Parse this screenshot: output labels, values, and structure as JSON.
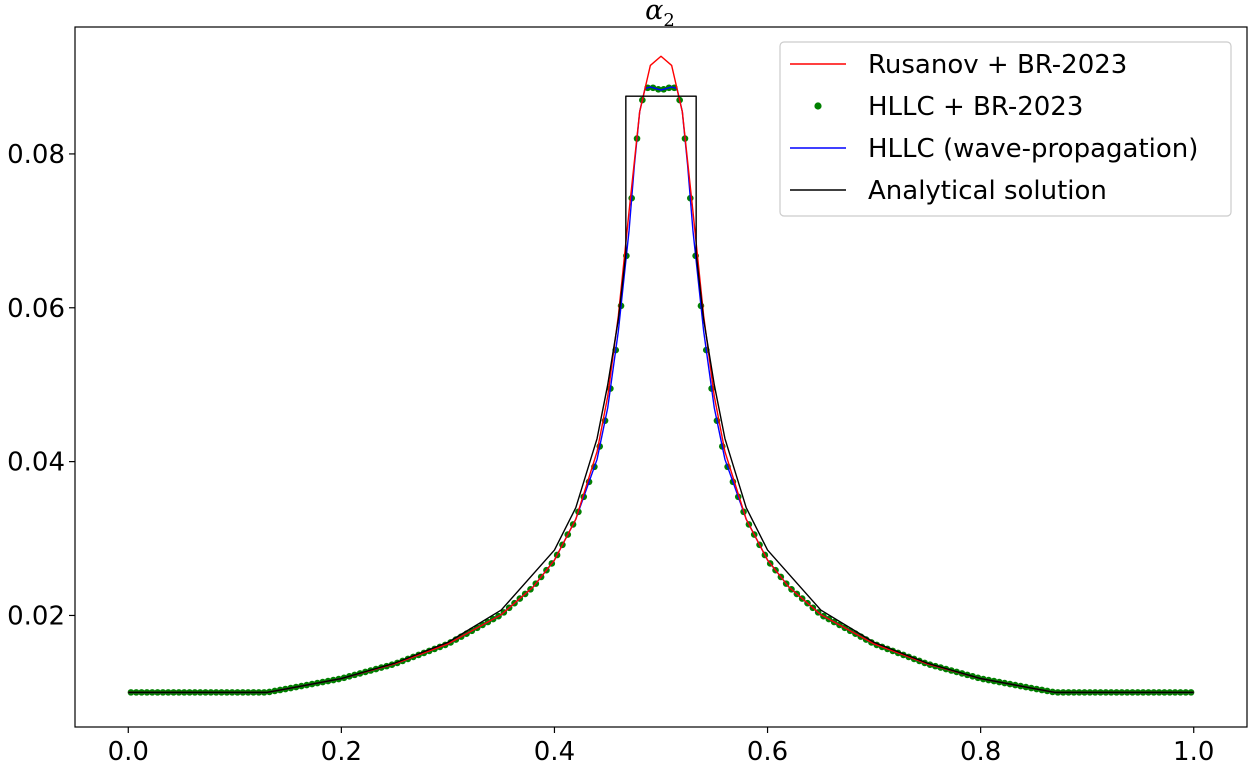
{
  "chart_data": {
    "type": "line",
    "title": "α",
    "title_subscript": "2",
    "xlabel": "",
    "ylabel": "",
    "xlim": [
      -0.05,
      1.05
    ],
    "ylim": [
      0.0055,
      0.0965
    ],
    "x_ticks": [
      0.0,
      0.2,
      0.4,
      0.6,
      0.8,
      1.0
    ],
    "x_tick_labels": [
      "0.0",
      "0.2",
      "0.4",
      "0.6",
      "0.8",
      "1.0"
    ],
    "y_ticks": [
      0.02,
      0.04,
      0.06,
      0.08
    ],
    "y_tick_labels": [
      "0.02",
      "0.04",
      "0.06",
      "0.08"
    ],
    "grid": false,
    "legend_position": "top-right",
    "series": [
      {
        "name": "Rusanov + BR-2023",
        "style": "line",
        "color": "#ff0000",
        "x": [
          0.0,
          0.13,
          0.15,
          0.2,
          0.25,
          0.3,
          0.35,
          0.38,
          0.4,
          0.42,
          0.44,
          0.45,
          0.46,
          0.47,
          0.48,
          0.49,
          0.5,
          0.51,
          0.52,
          0.53,
          0.54,
          0.55,
          0.56,
          0.58,
          0.6,
          0.62,
          0.65,
          0.7,
          0.75,
          0.8,
          0.85,
          0.87,
          1.0
        ],
        "y": [
          0.01,
          0.01,
          0.0105,
          0.0118,
          0.0137,
          0.0163,
          0.0201,
          0.0237,
          0.0272,
          0.0325,
          0.0413,
          0.0485,
          0.059,
          0.0725,
          0.0855,
          0.0915,
          0.0927,
          0.0915,
          0.0855,
          0.0725,
          0.059,
          0.0485,
          0.0413,
          0.0325,
          0.0272,
          0.0237,
          0.0201,
          0.0163,
          0.0137,
          0.0118,
          0.0105,
          0.01,
          0.01
        ]
      },
      {
        "name": "HLLC + BR-2023",
        "style": "markers",
        "color": "#008000",
        "x": [
          0.0,
          0.13,
          0.15,
          0.2,
          0.25,
          0.3,
          0.35,
          0.38,
          0.4,
          0.42,
          0.44,
          0.45,
          0.46,
          0.47,
          0.475,
          0.48,
          0.485,
          0.49,
          0.5,
          0.51,
          0.515,
          0.52,
          0.525,
          0.53,
          0.54,
          0.55,
          0.56,
          0.58,
          0.6,
          0.62,
          0.65,
          0.7,
          0.75,
          0.8,
          0.85,
          0.87,
          1.0
        ],
        "y": [
          0.01,
          0.01,
          0.0105,
          0.0118,
          0.0137,
          0.0163,
          0.0201,
          0.0237,
          0.0272,
          0.0325,
          0.0403,
          0.047,
          0.057,
          0.07,
          0.0785,
          0.0855,
          0.0885,
          0.0887,
          0.0883,
          0.0887,
          0.0885,
          0.0855,
          0.0785,
          0.07,
          0.057,
          0.047,
          0.0403,
          0.0325,
          0.0272,
          0.0237,
          0.0201,
          0.0163,
          0.0137,
          0.0118,
          0.0105,
          0.01,
          0.01
        ]
      },
      {
        "name": "HLLC (wave-propagation)",
        "style": "line",
        "color": "#0000ff",
        "x": [
          0.0,
          0.13,
          0.15,
          0.2,
          0.25,
          0.3,
          0.35,
          0.38,
          0.4,
          0.42,
          0.44,
          0.45,
          0.46,
          0.47,
          0.475,
          0.48,
          0.485,
          0.49,
          0.5,
          0.51,
          0.515,
          0.52,
          0.525,
          0.53,
          0.54,
          0.55,
          0.56,
          0.58,
          0.6,
          0.62,
          0.65,
          0.7,
          0.75,
          0.8,
          0.85,
          0.87,
          1.0
        ],
        "y": [
          0.01,
          0.01,
          0.0105,
          0.0118,
          0.0137,
          0.0163,
          0.0201,
          0.0237,
          0.0272,
          0.0325,
          0.0403,
          0.047,
          0.057,
          0.07,
          0.0785,
          0.0855,
          0.0885,
          0.0887,
          0.0883,
          0.0887,
          0.0885,
          0.0855,
          0.0785,
          0.07,
          0.057,
          0.047,
          0.0403,
          0.0325,
          0.0272,
          0.0237,
          0.0201,
          0.0163,
          0.0137,
          0.0118,
          0.0105,
          0.01,
          0.01
        ]
      },
      {
        "name": "Analytical solution",
        "style": "line",
        "color": "#000000",
        "x": [
          0.0,
          0.13,
          0.15,
          0.2,
          0.25,
          0.3,
          0.35,
          0.4,
          0.42,
          0.44,
          0.45,
          0.46,
          0.467,
          0.467,
          0.533,
          0.533,
          0.54,
          0.55,
          0.56,
          0.58,
          0.6,
          0.65,
          0.7,
          0.75,
          0.8,
          0.85,
          0.87,
          1.0
        ],
        "y": [
          0.01,
          0.01,
          0.0105,
          0.0118,
          0.0138,
          0.0165,
          0.0207,
          0.0285,
          0.034,
          0.043,
          0.05,
          0.0585,
          0.067,
          0.0875,
          0.0875,
          0.067,
          0.0585,
          0.05,
          0.043,
          0.034,
          0.0285,
          0.0207,
          0.0165,
          0.0138,
          0.0118,
          0.0105,
          0.01,
          0.01
        ]
      }
    ]
  }
}
